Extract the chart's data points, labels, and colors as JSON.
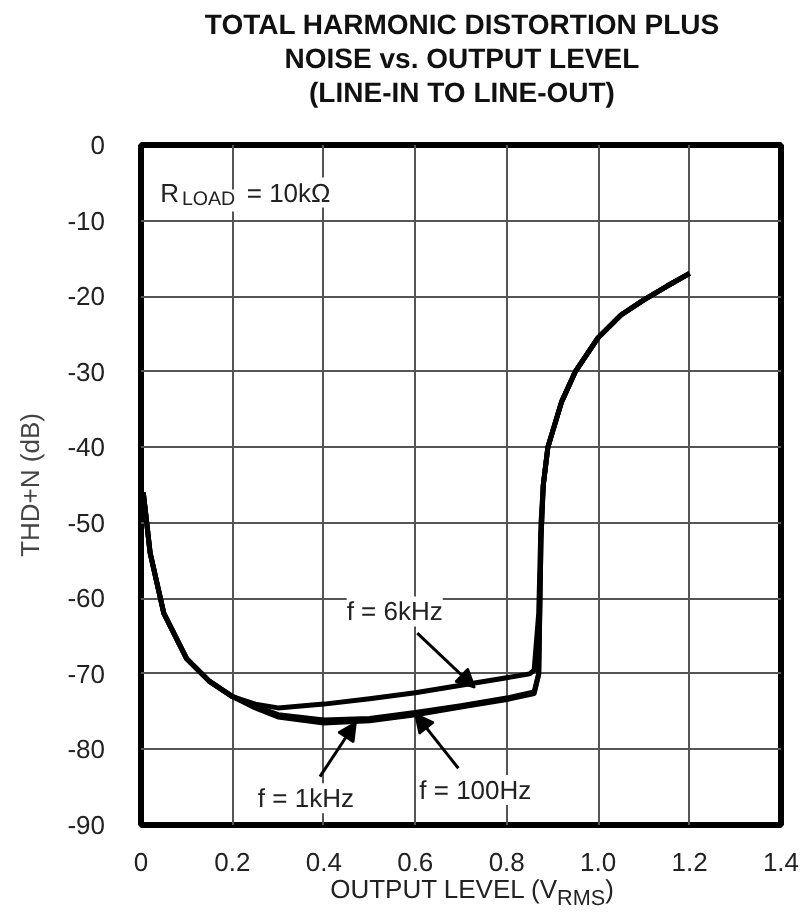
{
  "chart_data": {
    "type": "line",
    "title": "TOTAL HARMONIC DISTORTION PLUS\nNOISE vs. OUTPUT LEVEL\n(LINE-IN TO LINE-OUT)",
    "xlabel": "OUTPUT LEVEL (V$_{RMS}$)",
    "ylabel": "THD+N (dB)",
    "xlim": [
      0,
      1.4
    ],
    "ylim": [
      -90,
      0
    ],
    "xticks": [
      0,
      0.2,
      0.4,
      0.6,
      0.8,
      {
        "value": 1,
        "label": "1.0"
      },
      1.2,
      1.4
    ],
    "yticks": [
      0,
      -10,
      -20,
      -30,
      -40,
      -50,
      -60,
      -70,
      -80,
      -90
    ],
    "grid": true,
    "marker": "none",
    "line_style": "solid",
    "series": [
      {
        "color": "#000000",
        "x": [
          0.005,
          0.02,
          0.05,
          0.1,
          0.15,
          0.2,
          0.25,
          0.3,
          0.4,
          0.5,
          0.6,
          0.7,
          0.8,
          0.85,
          0.86,
          0.87,
          0.875,
          0.88,
          0.89,
          0.9,
          0.92,
          0.95,
          1.0,
          1.05,
          1.1,
          1.15,
          1.2
        ],
        "values": [
          -46,
          -54,
          -62,
          -68,
          -71,
          -73,
          -74,
          -74.5,
          -74,
          -73.3,
          -72.5,
          -71.5,
          -70.5,
          -70,
          -69.5,
          -62,
          -50,
          -45,
          -40,
          -38,
          -34,
          -30,
          -25.5,
          -22.5,
          -20.5,
          -18.7,
          -17
        ]
      },
      {
        "color": "#000000",
        "x": [
          0.005,
          0.02,
          0.05,
          0.1,
          0.15,
          0.2,
          0.25,
          0.3,
          0.4,
          0.5,
          0.6,
          0.7,
          0.8,
          0.86,
          0.87,
          0.875,
          0.88,
          0.89,
          0.9,
          0.92,
          0.95,
          1.0,
          1.05,
          1.1,
          1.15,
          1.2
        ],
        "values": [
          -46,
          -54,
          -62,
          -68,
          -71,
          -73,
          -74.5,
          -75.7,
          -76.5,
          -76.2,
          -75.4,
          -74.4,
          -73.4,
          -72.6,
          -70,
          -52,
          -45,
          -40,
          -38,
          -34,
          -30,
          -25.5,
          -22.5,
          -20.5,
          -18.7,
          -17
        ]
      },
      {
        "color": "#000000",
        "x": [
          0.005,
          0.02,
          0.05,
          0.1,
          0.15,
          0.2,
          0.25,
          0.3,
          0.4,
          0.5,
          0.6,
          0.7,
          0.8,
          0.86,
          0.87,
          0.875,
          0.88,
          0.89,
          0.9,
          0.92,
          0.95,
          1.0,
          1.05,
          1.1,
          1.15,
          1.2
        ],
        "values": [
          -46,
          -54,
          -62,
          -68,
          -71,
          -73,
          -74.3,
          -75.4,
          -76.1,
          -75.9,
          -75.1,
          -74.2,
          -73.2,
          -72.4,
          -70,
          -52,
          -45,
          -40,
          -38,
          -34,
          -30,
          -25.5,
          -22.5,
          -20.5,
          -18.7,
          -17
        ]
      }
    ],
    "annotations": [
      {
        "text": "f = 6kHz",
        "x": 0.73,
        "y": -71.8
      },
      {
        "text": "f = 1kHz",
        "x": 0.47,
        "y": -76.4
      },
      {
        "text": "f = 100Hz",
        "x": 0.6,
        "y": -75.3
      },
      "R$_{LOAD}$ = 10kΩ"
    ]
  }
}
